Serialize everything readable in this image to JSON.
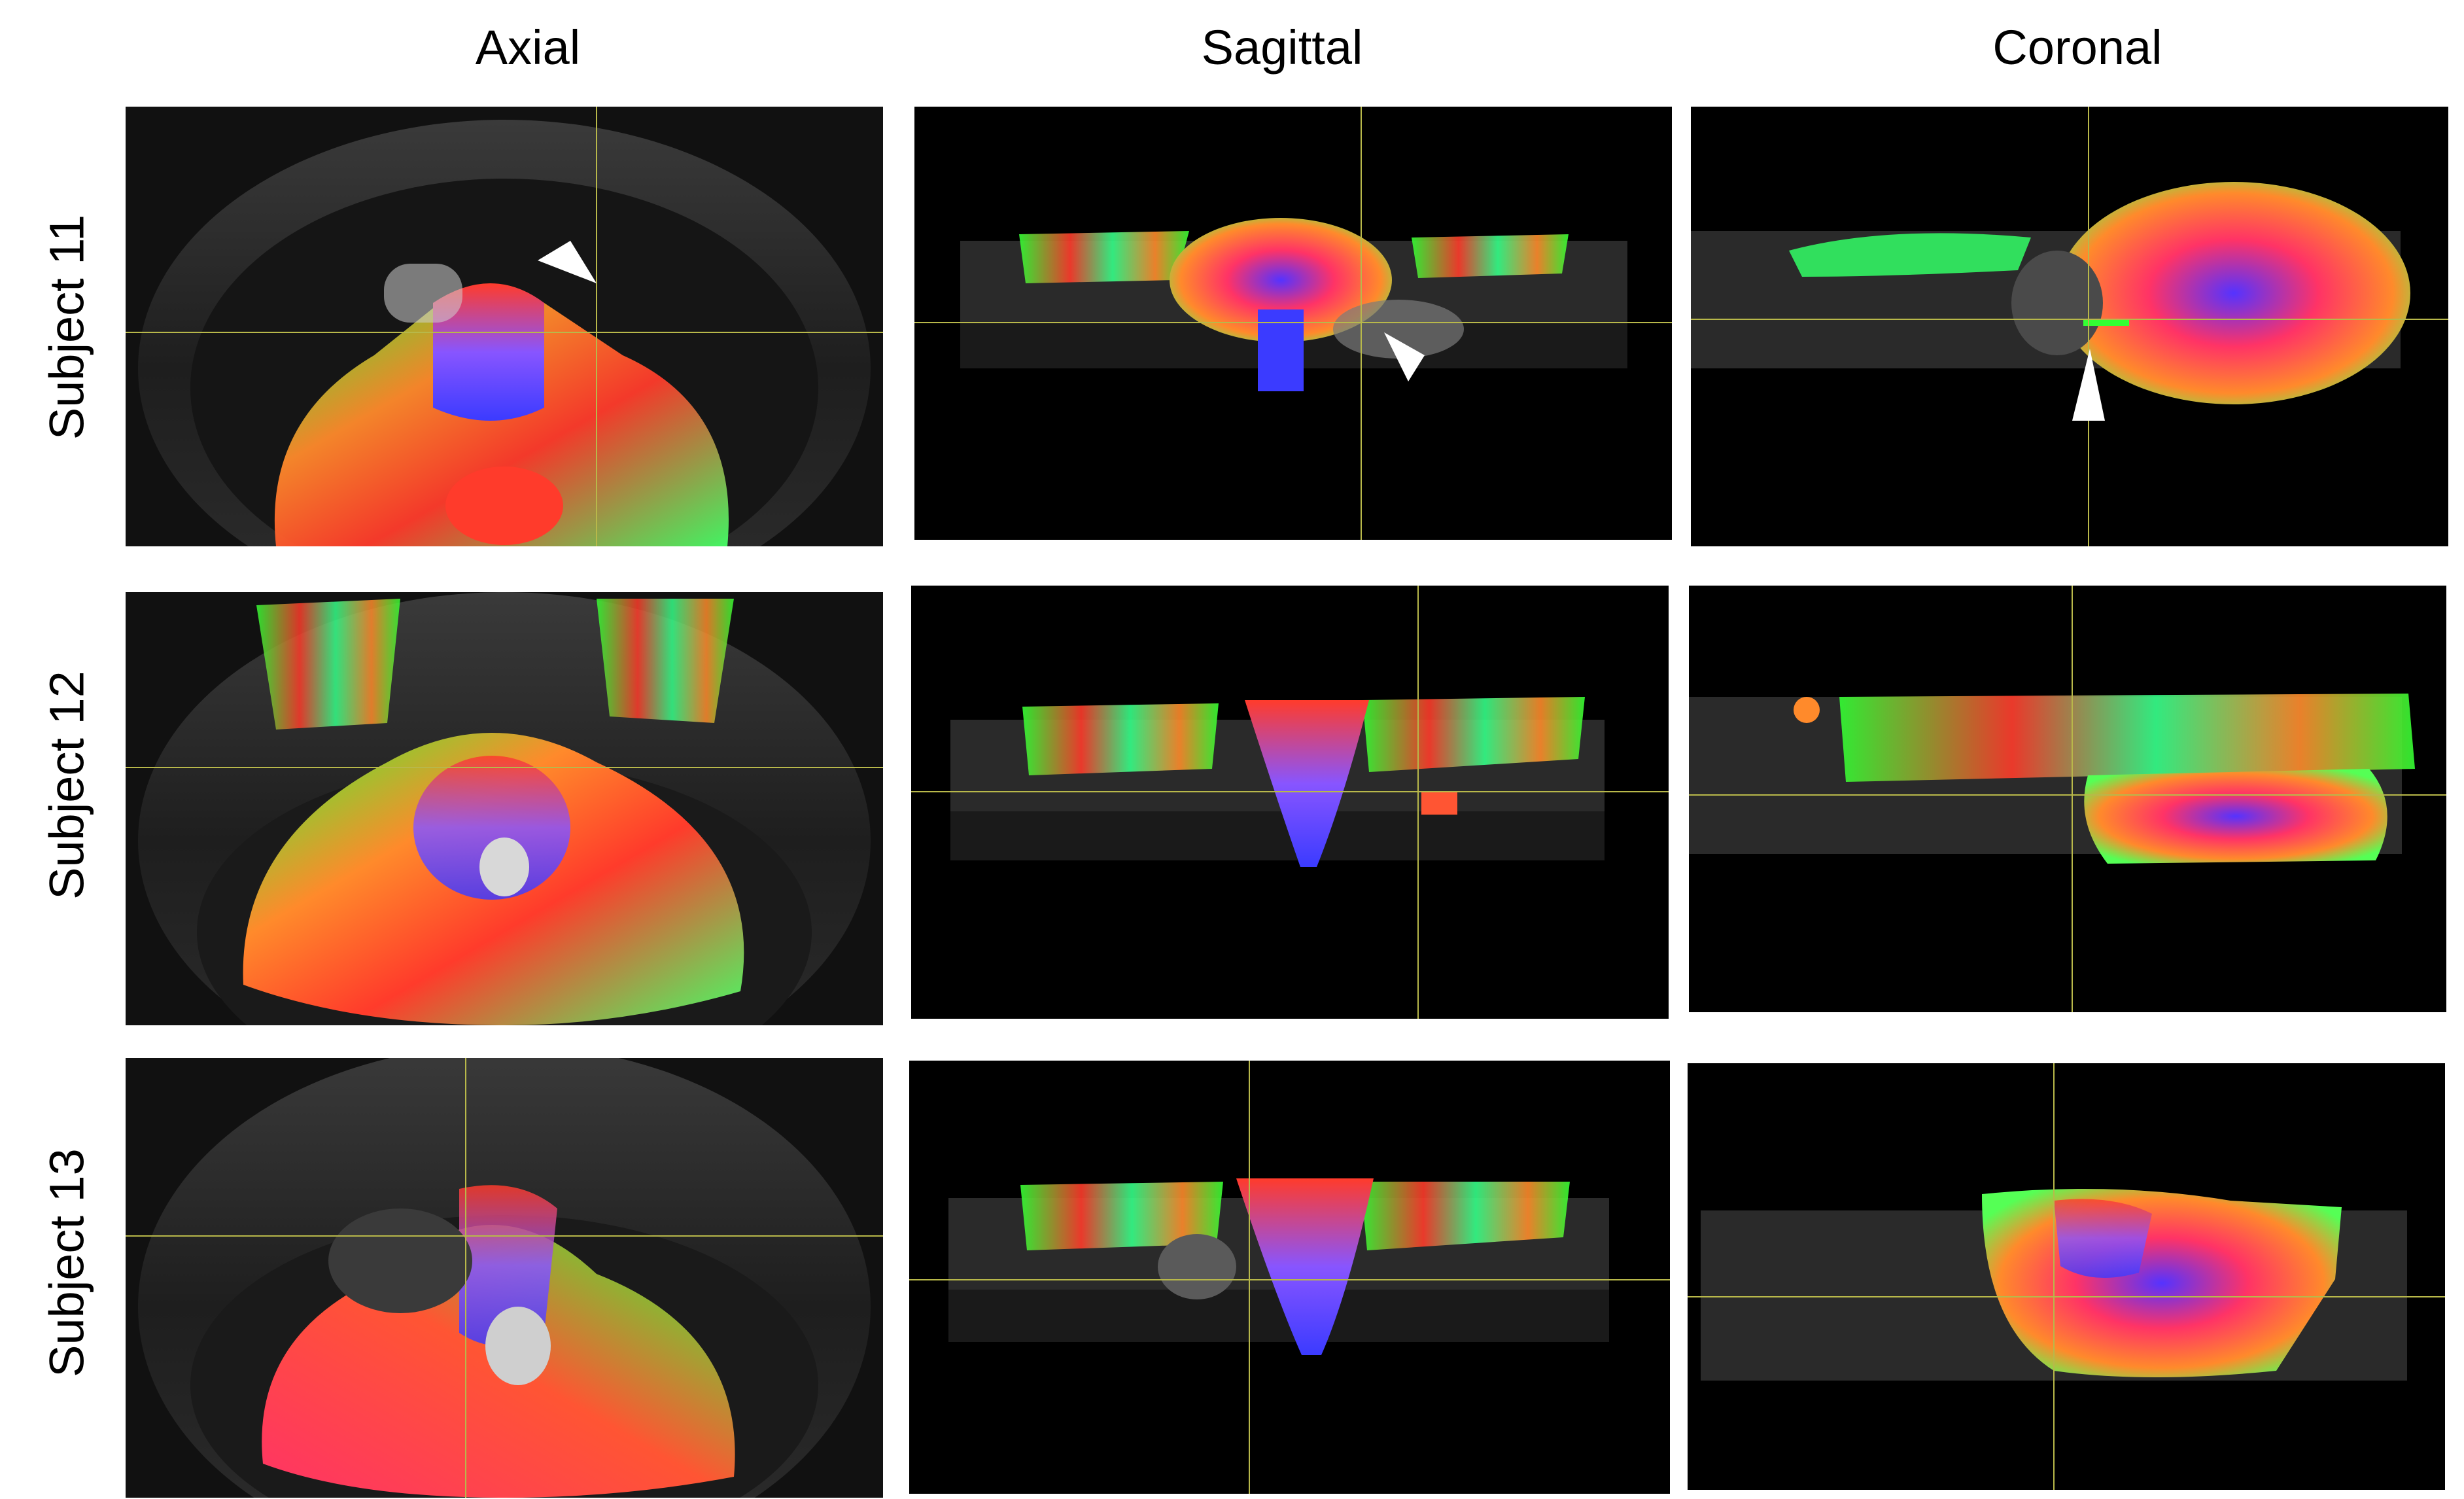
{
  "columns": [
    "Axial",
    "Sagittal",
    "Coronal"
  ],
  "rows": [
    "Subject 11",
    "Subject 12",
    "Subject 13"
  ],
  "panels": [
    {
      "id": "s11-axial",
      "view": "axial",
      "arrow": "down-right"
    },
    {
      "id": "s11-sagittal",
      "view": "sagittal",
      "arrow": "down-right"
    },
    {
      "id": "s11-coronal",
      "view": "coronal",
      "arrow": "up"
    },
    {
      "id": "s12-axial",
      "view": "axial"
    },
    {
      "id": "s12-sagittal",
      "view": "sagittal"
    },
    {
      "id": "s12-coronal",
      "view": "coronal"
    },
    {
      "id": "s13-axial",
      "view": "axial"
    },
    {
      "id": "s13-sagittal",
      "view": "sagittal"
    },
    {
      "id": "s13-coronal",
      "view": "coronal"
    }
  ],
  "colors": {
    "crosshair": "#b8b84a",
    "fiber_green": "#33ff33",
    "fiber_red": "#ff3b2b",
    "fiber_blue": "#3b3bff",
    "fiber_orange": "#ff8a2b",
    "background": "#000000",
    "arrowhead": "#ffffff"
  }
}
